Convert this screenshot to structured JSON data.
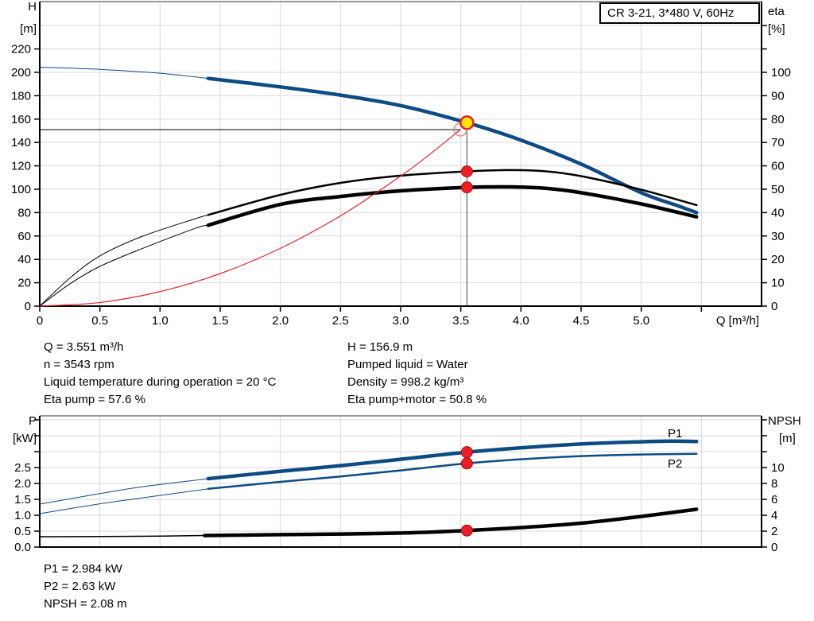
{
  "title_box": {
    "text": "CR 3-21, 3*480 V, 60Hz"
  },
  "info_top": {
    "left": [
      "Q = 3.551 m³/h",
      "n = 3543 rpm",
      "Liquid temperature during operation = 20 °C",
      "Eta pump = 57.6 %"
    ],
    "right": [
      "H = 156.9 m",
      "Pumped liquid = Water",
      "Density = 998.2 kg/m³",
      "Eta pump+motor = 50.8 %"
    ]
  },
  "info_bottom": [
    "P1 = 2.984 kW",
    "P2 = 2.63 kW",
    "NPSH = 2.08 m"
  ],
  "colors": {
    "curve_blue": "#0e4b82",
    "curve_black": "#000000",
    "curve_red": "#e8232a",
    "marker_red": "#ee1c25",
    "marker_red_edge": "#9e1014",
    "marker_yellow": "#ffe600",
    "open_circle": "#f0827d",
    "grid": "#d9d9d9",
    "axis": "#000000",
    "top_border": "#999999",
    "ref_line": "#444444"
  },
  "chart_data": [
    {
      "type": "line",
      "x": {
        "label": "Q [m³/h]",
        "min": 0,
        "max": 6.0,
        "grid_step": 0.5,
        "ticks": [
          [
            0,
            "0"
          ],
          [
            0.5,
            "0.5"
          ],
          [
            1,
            "1.0"
          ],
          [
            1.5,
            "1.5"
          ],
          [
            2,
            "2.0"
          ],
          [
            2.5,
            "2.5"
          ],
          [
            3,
            "3.0"
          ],
          [
            3.5,
            "3.5"
          ],
          [
            4,
            "4.0"
          ],
          [
            4.5,
            "4.5"
          ],
          [
            5,
            "5.0"
          ]
        ],
        "unlabeled_ticks": [
          5.5
        ]
      },
      "y_left": {
        "name": "H",
        "unit": "[m]",
        "min": 0,
        "max": 260.5,
        "grid_step": 20,
        "grid_max": 240,
        "ticks": [
          [
            0,
            "0"
          ],
          [
            20,
            "20"
          ],
          [
            40,
            "40"
          ],
          [
            60,
            "60"
          ],
          [
            80,
            "80"
          ],
          [
            100,
            "100"
          ],
          [
            120,
            "120"
          ],
          [
            140,
            "140"
          ],
          [
            160,
            "160"
          ],
          [
            180,
            "180"
          ],
          [
            200,
            "200"
          ],
          [
            220,
            "220"
          ]
        ]
      },
      "y_right": {
        "name": "eta",
        "unit": "[%]",
        "min": 0,
        "max": 130.25,
        "ticks": [
          [
            0,
            "0"
          ],
          [
            10,
            "10"
          ],
          [
            20,
            "20"
          ],
          [
            30,
            "30"
          ],
          [
            40,
            "40"
          ],
          [
            50,
            "50"
          ],
          [
            60,
            "60"
          ],
          [
            70,
            "70"
          ],
          [
            80,
            "80"
          ],
          [
            90,
            "90"
          ],
          [
            100,
            "100"
          ]
        ],
        "unlabeled_ticks": [
          110,
          120
        ]
      },
      "series": [
        {
          "name": "head-curve",
          "axis": "left",
          "color": "curve_blue",
          "width": 4.5,
          "width_thin": 1,
          "split": 1.4,
          "points": [
            [
              0,
              204.5
            ],
            [
              0.5,
              202.5
            ],
            [
              1,
              199.2
            ],
            [
              1.4,
              194.8
            ],
            [
              2,
              187.5
            ],
            [
              2.5,
              180.5
            ],
            [
              3,
              171.5
            ],
            [
              3.551,
              156.9
            ],
            [
              4,
              142
            ],
            [
              4.5,
              121.5
            ],
            [
              5,
              97
            ],
            [
              5.3,
              86
            ],
            [
              5.46,
              80
            ]
          ]
        },
        {
          "name": "eta-pump-curve",
          "axis": "right",
          "color": "curve_black",
          "width": 2.5,
          "width_thin": 1,
          "split": 1.4,
          "points": [
            [
              0,
              0
            ],
            [
              0.25,
              12
            ],
            [
              0.5,
              21.5
            ],
            [
              0.85,
              29.8
            ],
            [
              1.3,
              37.5
            ],
            [
              1.4,
              39
            ],
            [
              2,
              47.6
            ],
            [
              2.5,
              52.7
            ],
            [
              3,
              55.8
            ],
            [
              3.551,
              57.6
            ],
            [
              3.9,
              58.2
            ],
            [
              4.2,
              57.7
            ],
            [
              4.5,
              55.6
            ],
            [
              5,
              49.8
            ],
            [
              5.46,
              43.2
            ]
          ]
        },
        {
          "name": "eta-pump-motor-curve",
          "axis": "right",
          "color": "curve_black",
          "width": 4.5,
          "width_thin": 1,
          "split": 1.4,
          "points": [
            [
              0,
              0
            ],
            [
              0.25,
              9.5
            ],
            [
              0.5,
              17
            ],
            [
              0.85,
              24.6
            ],
            [
              1.3,
              33.4
            ],
            [
              1.4,
              34.6
            ],
            [
              2,
              43.5
            ],
            [
              2.5,
              46.9
            ],
            [
              3,
              49.3
            ],
            [
              3.551,
              50.8
            ],
            [
              3.9,
              51
            ],
            [
              4.2,
              50.4
            ],
            [
              4.5,
              48.5
            ],
            [
              5,
              43.7
            ],
            [
              5.46,
              38.2
            ]
          ]
        },
        {
          "name": "system-curve",
          "axis": "left",
          "color": "curve_red",
          "width": 1.2,
          "width_thin": 1.2,
          "split": -1,
          "points": [
            [
              0,
              0
            ],
            [
              0.5,
              3.1
            ],
            [
              1,
              12.4
            ],
            [
              1.5,
              27.8
            ],
            [
              2,
              49.4
            ],
            [
              2.5,
              77.2
            ],
            [
              3,
              111.2
            ],
            [
              3.25,
              130.5
            ],
            [
              3.496,
              151
            ]
          ]
        }
      ],
      "ref_lines": [
        {
          "dir": "h",
          "axis": "left",
          "y": 151,
          "x_from": 0,
          "x_to": 3.496
        },
        {
          "dir": "v",
          "axis": "left",
          "x": 3.551,
          "y_from": 0,
          "y_to": 156.9
        }
      ],
      "markers": [
        {
          "kind": "dot",
          "axis": "right",
          "x": 3.551,
          "y": 57.6
        },
        {
          "kind": "dot",
          "axis": "right",
          "x": 3.551,
          "y": 50.8
        },
        {
          "kind": "target-circle",
          "axis": "left",
          "x": 3.496,
          "y": 151
        },
        {
          "kind": "duty-point",
          "axis": "left",
          "x": 3.551,
          "y": 156.9
        }
      ]
    },
    {
      "type": "line",
      "x": {
        "label": "",
        "min": 0,
        "max": 6.0,
        "grid_step": 0.5,
        "ticks": [],
        "unlabeled_ticks": []
      },
      "y_left": {
        "name": "P",
        "unit": "[kW]",
        "min": 0,
        "max": 4.125,
        "grid_step": 0.5,
        "grid_max": 4,
        "ticks": [
          [
            0,
            "0.0"
          ],
          [
            0.5,
            "0.5"
          ],
          [
            1,
            "1.0"
          ],
          [
            1.5,
            "1.5"
          ],
          [
            2,
            "2.0"
          ],
          [
            2.5,
            "2.5"
          ]
        ],
        "unlabeled_ticks": [
          3,
          3.5,
          4
        ]
      },
      "y_right": {
        "name": "NPSH",
        "unit": "[m]",
        "min": 0,
        "max": 16.5,
        "ticks": [
          [
            0,
            "0"
          ],
          [
            2,
            "2"
          ],
          [
            4,
            "4"
          ],
          [
            6,
            "6"
          ],
          [
            8,
            "8"
          ],
          [
            10,
            "10"
          ]
        ],
        "unlabeled_ticks": [
          12,
          14,
          16
        ]
      },
      "series": [
        {
          "name": "p1-curve",
          "axis": "left",
          "color": "curve_blue",
          "width": 4.5,
          "width_thin": 1,
          "split": 1.4,
          "label": {
            "text": "P1",
            "x": 5.22,
            "y": 3.45
          },
          "points": [
            [
              0,
              1.35
            ],
            [
              0.5,
              1.68
            ],
            [
              0.86,
              1.9
            ],
            [
              1.4,
              2.15
            ],
            [
              2,
              2.38
            ],
            [
              2.5,
              2.56
            ],
            [
              3,
              2.76
            ],
            [
              3.551,
              2.984
            ],
            [
              4,
              3.12
            ],
            [
              4.5,
              3.24
            ],
            [
              5,
              3.31
            ],
            [
              5.25,
              3.33
            ],
            [
              5.46,
              3.32
            ]
          ]
        },
        {
          "name": "p2-curve",
          "axis": "left",
          "color": "curve_blue",
          "width": 2.5,
          "width_thin": 1,
          "split": 1.4,
          "label": {
            "text": "P2",
            "x": 5.22,
            "y": 2.5
          },
          "points": [
            [
              0,
              1.05
            ],
            [
              0.5,
              1.36
            ],
            [
              0.86,
              1.55
            ],
            [
              1.4,
              1.83
            ],
            [
              2,
              2.05
            ],
            [
              2.5,
              2.22
            ],
            [
              3,
              2.41
            ],
            [
              3.551,
              2.63
            ],
            [
              4,
              2.76
            ],
            [
              4.5,
              2.86
            ],
            [
              5,
              2.91
            ],
            [
              5.46,
              2.93
            ]
          ]
        },
        {
          "name": "npsh-curve",
          "axis": "right",
          "color": "curve_black",
          "width": 4.5,
          "width_thin": 1.5,
          "split": 1.37,
          "points": [
            [
              0,
              1.3
            ],
            [
              0.5,
              1.32
            ],
            [
              1,
              1.38
            ],
            [
              1.37,
              1.45
            ],
            [
              2,
              1.56
            ],
            [
              2.5,
              1.64
            ],
            [
              3,
              1.76
            ],
            [
              3.551,
              2.08
            ],
            [
              4,
              2.45
            ],
            [
              4.5,
              3.0
            ],
            [
              5,
              3.85
            ],
            [
              5.46,
              4.75
            ]
          ]
        }
      ],
      "ref_lines": [],
      "markers": [
        {
          "kind": "dot",
          "axis": "left",
          "x": 3.551,
          "y": 2.984
        },
        {
          "kind": "dot",
          "axis": "left",
          "x": 3.551,
          "y": 2.63
        },
        {
          "kind": "dot",
          "axis": "right",
          "x": 3.551,
          "y": 2.08
        }
      ]
    }
  ]
}
